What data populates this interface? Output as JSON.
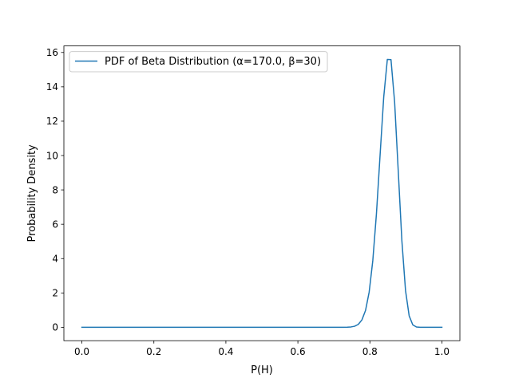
{
  "chart_data": {
    "type": "line",
    "title": "",
    "xlabel": "P(H)",
    "ylabel": "Probability Density",
    "xlim": [
      -0.05,
      1.05
    ],
    "ylim": [
      -0.78,
      16.38
    ],
    "xticks": [
      0.0,
      0.2,
      0.4,
      0.6,
      0.8,
      1.0
    ],
    "xtick_labels": [
      "0.0",
      "0.2",
      "0.4",
      "0.6",
      "0.8",
      "1.0"
    ],
    "yticks": [
      0,
      2,
      4,
      6,
      8,
      10,
      12,
      14,
      16
    ],
    "ytick_labels": [
      "0",
      "2",
      "4",
      "6",
      "8",
      "10",
      "12",
      "14",
      "16"
    ],
    "grid": false,
    "legend_position": "upper-left",
    "series": [
      {
        "name": "PDF of Beta Distribution (α=170.0, β=30)",
        "color": "#1f77b4",
        "distribution": {
          "family": "beta",
          "alpha": 170.0,
          "beta": 30,
          "x_start": 0.0,
          "x_end": 1.0,
          "points": 100
        }
      }
    ]
  }
}
